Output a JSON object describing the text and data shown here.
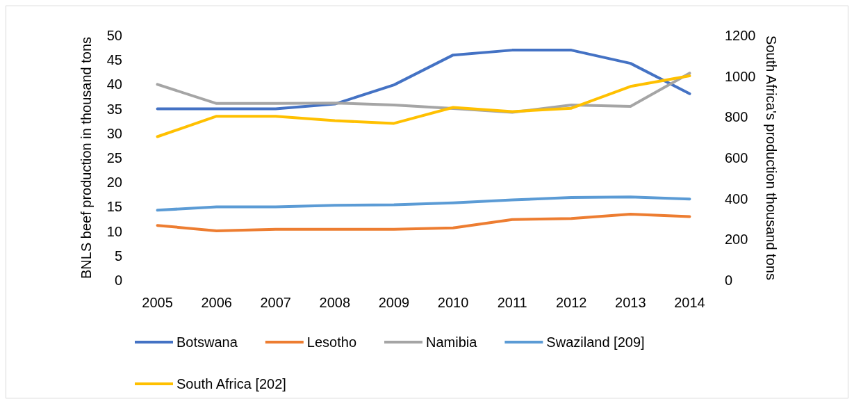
{
  "chart_data": {
    "type": "line",
    "categories": [
      "2005",
      "2006",
      "2007",
      "2008",
      "2009",
      "2010",
      "2011",
      "2012",
      "2013",
      "2014"
    ],
    "ylabel": "BNLS beef production in thousand tons",
    "y2label": "South Africa's production thousand tons",
    "ylim": [
      0,
      50
    ],
    "yticks": [
      0,
      5,
      10,
      15,
      20,
      25,
      30,
      35,
      40,
      45,
      50
    ],
    "y2lim": [
      0,
      1200
    ],
    "y2ticks": [
      0,
      200,
      400,
      600,
      800,
      1000,
      1200
    ],
    "grid": false,
    "legend": "bottom",
    "marker": "none",
    "line_style": "solid",
    "series": [
      {
        "name": "Botswana",
        "color": "#4472c4",
        "values": [
          35,
          35,
          35,
          36,
          39.9,
          46,
          47,
          47,
          44.3,
          38.1
        ]
      },
      {
        "name": "Lesotho",
        "color": "#ed7d31",
        "values": [
          11.2,
          10.1,
          10.4,
          10.4,
          10.4,
          10.7,
          12.4,
          12.6,
          13.5,
          13
        ]
      },
      {
        "name": "Namibia",
        "color": "#a5a5a5",
        "values": [
          40,
          36.1,
          36.1,
          36.2,
          35.8,
          35.1,
          34.3,
          35.8,
          35.5,
          42.3
        ]
      },
      {
        "name": "Swaziland [209]",
        "color": "#5b9bd5",
        "values": [
          14.3,
          15,
          15,
          15.3,
          15.4,
          15.8,
          16.4,
          16.9,
          17,
          16.6
        ]
      },
      {
        "name": "South Africa [202]",
        "color": "#ffc000",
        "axis": "y2",
        "values": [
          704,
          804,
          804,
          782,
          769,
          847,
          827,
          843,
          950,
          1002
        ]
      }
    ]
  }
}
